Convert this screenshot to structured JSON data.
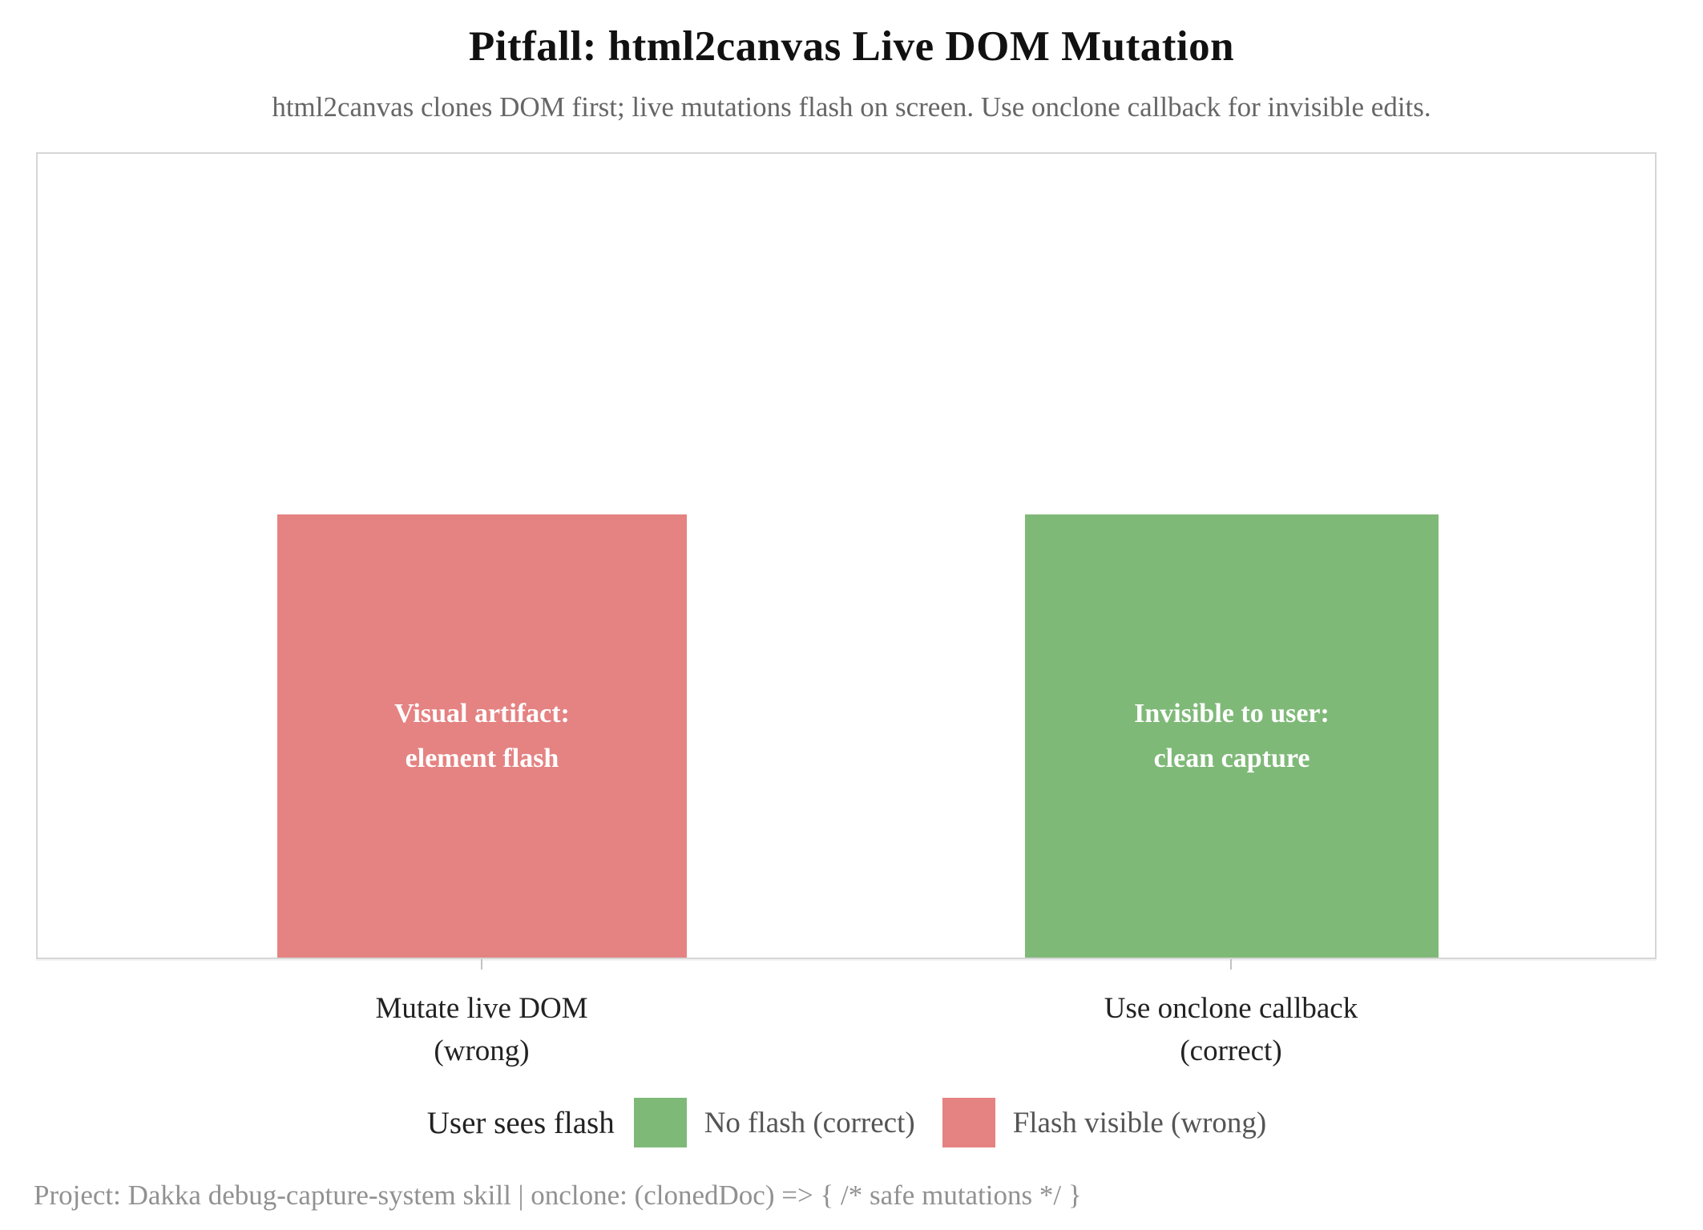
{
  "header": {
    "title": "Pitfall: html2canvas Live DOM Mutation",
    "subtitle": "html2canvas clones DOM first; live mutations flash on screen. Use onclone callback for invisible edits."
  },
  "chart_data": {
    "type": "bar",
    "title": "Pitfall: html2canvas Live DOM Mutation",
    "subtitle": "html2canvas clones DOM first; live mutations flash on screen. Use onclone callback for invisible edits.",
    "categories": [
      "Mutate live DOM\n(wrong)",
      "Use onclone callback\n(correct)"
    ],
    "values": [
      1,
      1
    ],
    "bar_annotations": [
      "Visual artifact:\nelement flash",
      "Invisible to user:\nclean capture"
    ],
    "bar_colors": [
      "#e58282",
      "#7fb978"
    ],
    "xlabel": "",
    "ylabel": "",
    "ylim": [
      0,
      1.8
    ],
    "y_axis_ticks_visible": false,
    "grid": false,
    "legend": {
      "title": "User sees flash",
      "position": "bottom-center",
      "entries": [
        {
          "label": "No flash (correct)",
          "color": "#7fb978"
        },
        {
          "label": "Flash visible (wrong)",
          "color": "#e58282"
        }
      ]
    }
  },
  "plot": {
    "bars": [
      {
        "category_line1": "Mutate live DOM",
        "category_line2": "(wrong)",
        "label_line1": "Visual artifact:",
        "label_line2": "element flash",
        "color": "#e58282",
        "value": 1
      },
      {
        "category_line1": "Use onclone callback",
        "category_line2": "(correct)",
        "label_line1": "Invisible to user:",
        "label_line2": "clean capture",
        "color": "#7fb978",
        "value": 1
      }
    ],
    "frame_border_color": "#d6d6d6"
  },
  "legend": {
    "title": "User sees flash",
    "entries": [
      {
        "label": "No flash (correct)",
        "color": "#7fb978"
      },
      {
        "label": "Flash visible (wrong)",
        "color": "#e58282"
      }
    ]
  },
  "footer": {
    "text": "Project: Dakka debug-capture-system skill | onclone: (clonedDoc) => { /* safe mutations */ }"
  }
}
